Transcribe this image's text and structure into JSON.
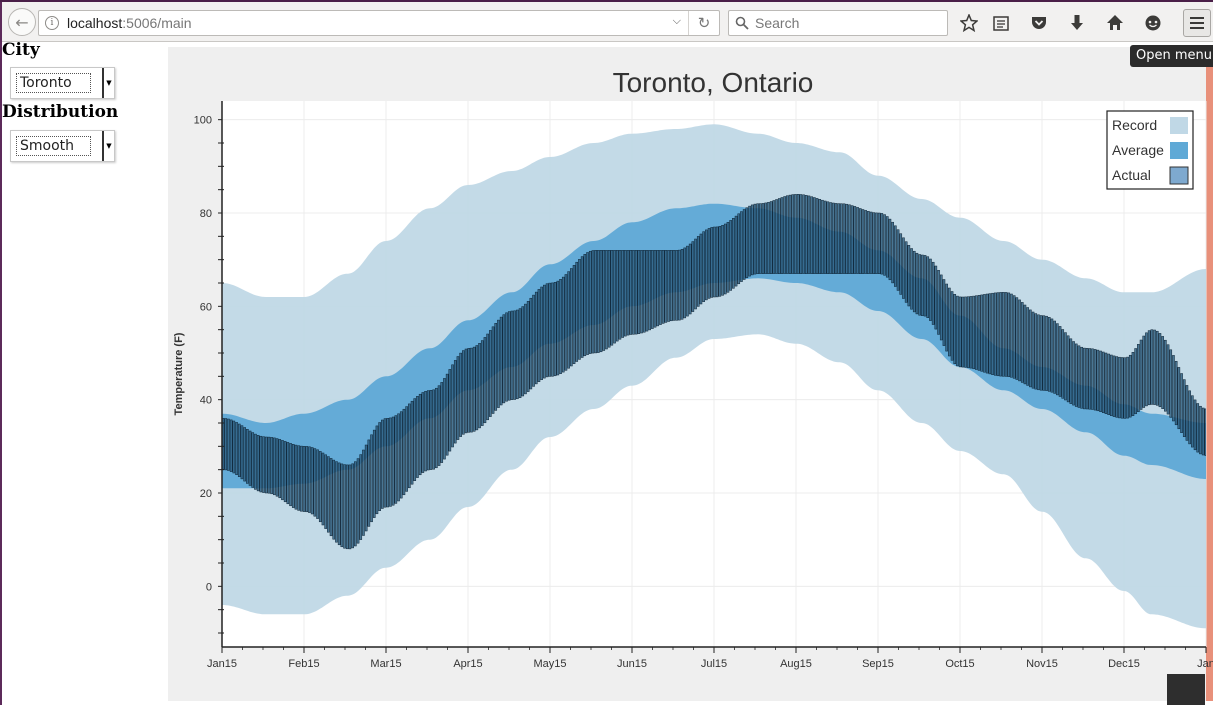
{
  "browser": {
    "url_host": "localhost",
    "url_rest": ":5006/main",
    "search_placeholder": "Search",
    "menu_tooltip": "Open menu"
  },
  "controls": {
    "city_label": "City",
    "city_value": "Toronto",
    "distribution_label": "Distribution",
    "distribution_value": "Smooth"
  },
  "chart_data": {
    "type": "area",
    "title": "Toronto, Ontario",
    "xlabel": "",
    "ylabel": "Temperature (F)",
    "x_ticks": [
      "Jan15",
      "Feb15",
      "Mar15",
      "Apr15",
      "May15",
      "Jun15",
      "Jul15",
      "Aug15",
      "Sep15",
      "Oct15",
      "Nov15",
      "Dec15",
      "Jan"
    ],
    "y_ticks": [
      0,
      20,
      40,
      60,
      80,
      100
    ],
    "ylim": [
      -13,
      104
    ],
    "legend_position": "top-right",
    "grid": true,
    "colors": {
      "record": "#c0d8e6",
      "average": "#5fa9d6",
      "actual_fill": "#2b5d80",
      "actual_edge": "#0d2233"
    },
    "x_dates": [
      "Jan15",
      "Feb1",
      "Feb15",
      "Mar1",
      "Mar15",
      "Apr1",
      "Apr15",
      "May1",
      "May15",
      "Jun1",
      "Jun15",
      "Jul1",
      "Jul15",
      "Aug1",
      "Aug15",
      "Sep1",
      "Sep15",
      "Oct1",
      "Oct15",
      "Nov1",
      "Nov15",
      "Dec1",
      "Dec15",
      "Dec25",
      "Jan"
    ],
    "series": [
      {
        "name": "Record",
        "low": [
          -4,
          -6,
          -6,
          -2,
          4,
          10,
          17,
          25,
          32,
          38,
          43,
          49,
          53,
          54,
          52,
          48,
          42,
          35,
          29,
          24,
          16,
          6,
          -1,
          -6,
          -9
        ],
        "high": [
          65,
          62,
          62,
          67,
          74,
          81,
          86,
          89,
          92,
          95,
          97,
          98,
          99,
          97,
          95,
          93,
          88,
          83,
          79,
          74,
          70,
          66,
          63,
          63,
          68
        ]
      },
      {
        "name": "Average",
        "low": [
          21,
          21,
          22,
          25,
          30,
          36,
          42,
          47,
          52,
          56,
          60,
          63,
          65,
          66,
          65,
          63,
          59,
          53,
          47,
          42,
          38,
          33,
          28,
          26,
          23
        ],
        "high": [
          37,
          35,
          37,
          40,
          45,
          51,
          57,
          63,
          69,
          74,
          78,
          81,
          82,
          81,
          79,
          76,
          72,
          66,
          58,
          51,
          47,
          43,
          39,
          37,
          35
        ]
      },
      {
        "name": "Actual",
        "low": [
          25,
          20,
          16,
          8,
          17,
          25,
          33,
          40,
          45,
          50,
          54,
          57,
          62,
          67,
          67,
          67,
          67,
          58,
          47,
          45,
          42,
          38,
          36,
          39,
          28
        ],
        "high": [
          36,
          32,
          30,
          26,
          36,
          42,
          51,
          59,
          65,
          72,
          72,
          72,
          77,
          82,
          84,
          82,
          80,
          71,
          62,
          63,
          58,
          51,
          49,
          55,
          38
        ]
      }
    ]
  }
}
